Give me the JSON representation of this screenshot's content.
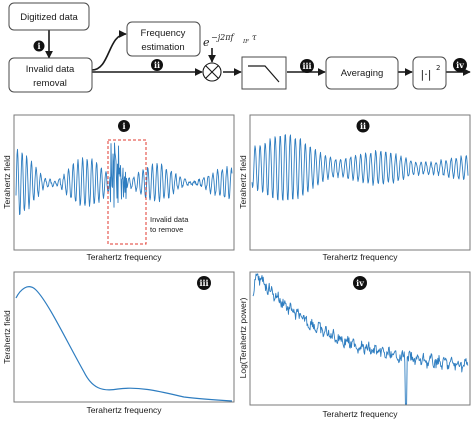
{
  "flow": {
    "digitized": "Digitized data",
    "invalid_line1": "Invalid data",
    "invalid_line2": "removal",
    "freq_line1": "Frequency",
    "freq_line2": "estimation",
    "exponent_base": "e",
    "exponent_power": "−j2πf",
    "exponent_sub": "IF",
    "exponent_tau": "τ",
    "averaging": "Averaging",
    "abs_base": "|·|",
    "abs_power": "2",
    "badges": [
      "i",
      "ii",
      "iii",
      "iv"
    ]
  },
  "panels": [
    {
      "badge": "i",
      "ylabel": "Terahertz field",
      "xlabel": "Terahertz frequency"
    },
    {
      "badge": "ii",
      "ylabel": "Terahertz field",
      "xlabel": "Terahertz frequency"
    },
    {
      "badge": "iii",
      "ylabel": "Terahertz field",
      "xlabel": "Terahertz frequency"
    },
    {
      "badge": "iv",
      "ylabel": "Log(Terahertz power)",
      "xlabel": "Terahertz frequency"
    }
  ],
  "annotation": {
    "line1": "Invalid data",
    "line2": "to remove",
    "color": "#e03a2f"
  },
  "colors": {
    "signal": "#2e7dc0",
    "frame": "#7a7a7a",
    "badge": "#111111"
  }
}
